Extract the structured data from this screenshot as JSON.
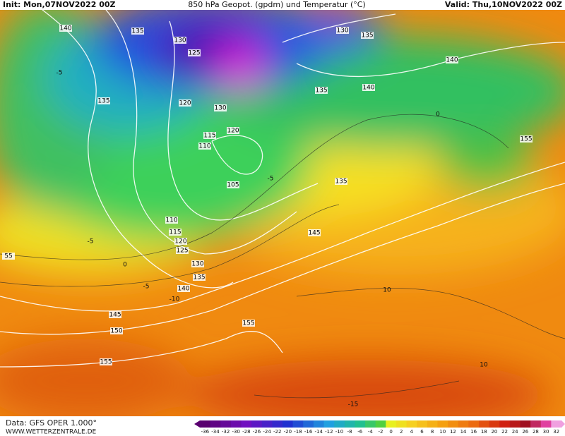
{
  "header": {
    "init": "Init: Mon,07NOV2022 00Z",
    "title": "850 hPa Geopot. (gpdm) und Temperatur (°C)",
    "valid": "Valid: Thu,10NOV2022 00Z"
  },
  "geopotential_labels": [
    "140",
    "135",
    "130",
    "125",
    "130",
    "135",
    "140",
    "135",
    "140",
    "135",
    "120",
    "130",
    "120",
    "115",
    "110",
    "105",
    "135",
    "155",
    "110",
    "115",
    "120",
    "125",
    "145",
    "130",
    "135",
    "140",
    "145",
    "150",
    "155",
    "155",
    "55"
  ],
  "temperature_labels": [
    "0",
    "-5",
    "-5",
    "0",
    "-5",
    "-10",
    "10",
    "10",
    "-15",
    "-5"
  ],
  "colorbar": {
    "labels": [
      "-36",
      "-34",
      "-32",
      "-30",
      "-28",
      "-26",
      "-24",
      "-22",
      "-20",
      "-18",
      "-16",
      "-14",
      "-12",
      "-10",
      "-8",
      "-6",
      "-4",
      "-2",
      "0",
      "2",
      "4",
      "6",
      "8",
      "10",
      "12",
      "14",
      "16",
      "18",
      "20",
      "22",
      "24",
      "26",
      "28",
      "30",
      "32"
    ]
  },
  "footer": {
    "data": "Data: GFS OPER 1.000°",
    "site": "WWW.WETTERZENTRALE.DE"
  }
}
